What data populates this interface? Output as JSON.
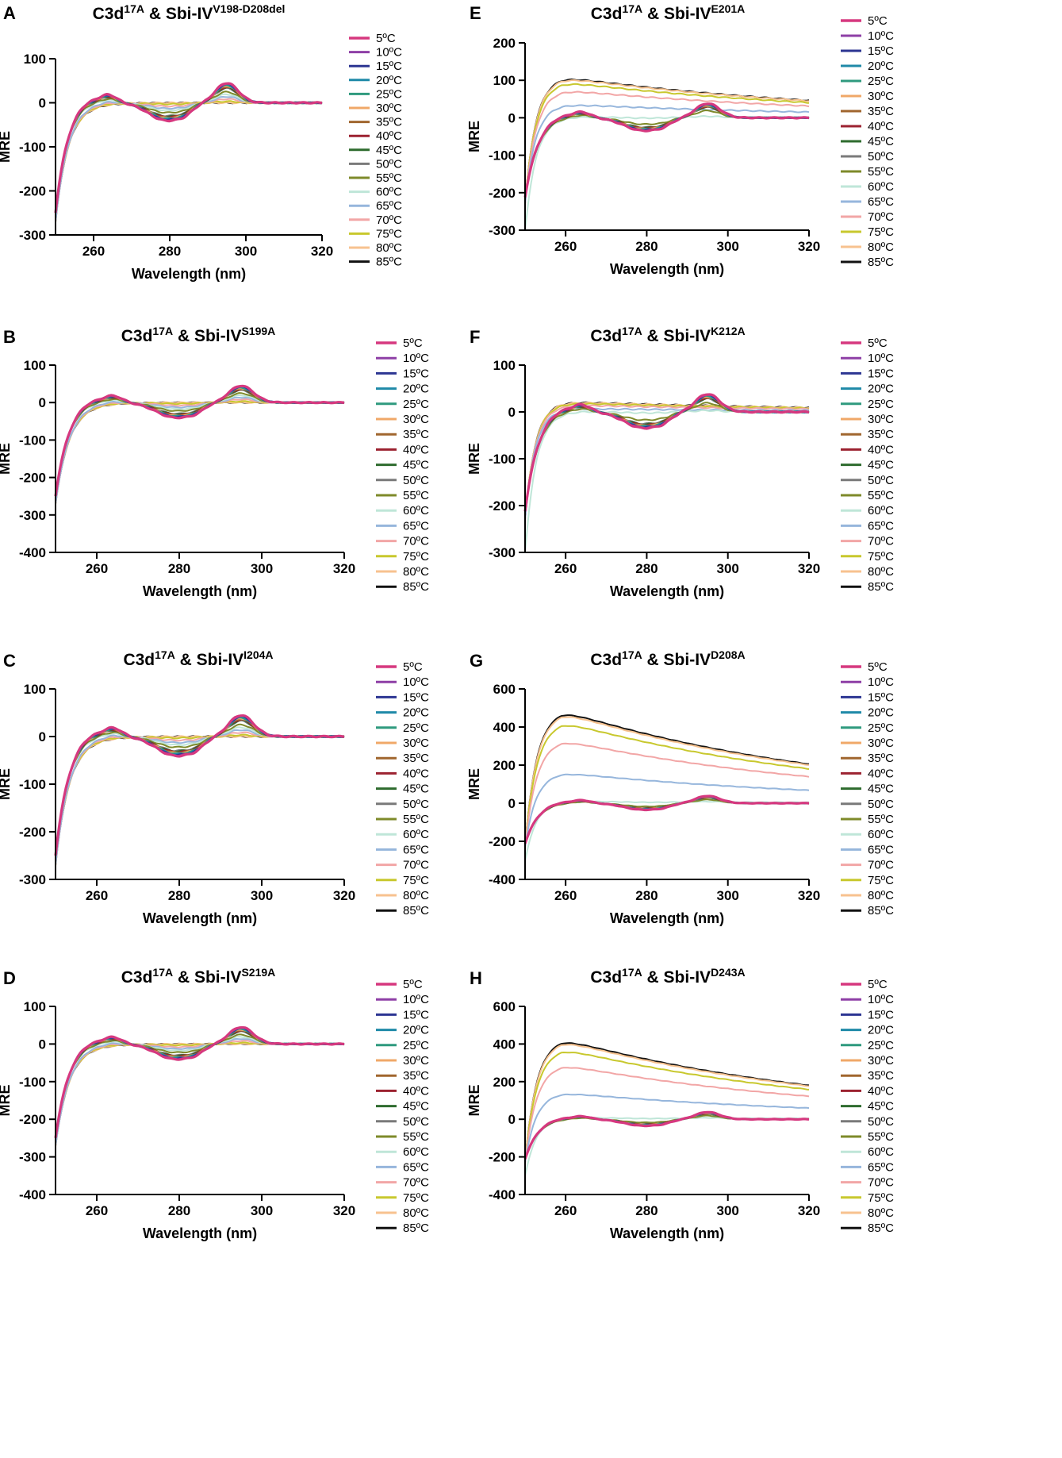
{
  "figure": {
    "legend_temperatures": [
      "5ºC",
      "10ºC",
      "15ºC",
      "20ºC",
      "25ºC",
      "30ºC",
      "35ºC",
      "40ºC",
      "45ºC",
      "50ºC",
      "55ºC",
      "60ºC",
      "65ºC",
      "70ºC",
      "75ºC",
      "80ºC",
      "85ºC"
    ],
    "legend_temperatures_alt": [
      "5ºC",
      "10ºC",
      "15ºC",
      "20ºC",
      "25ºC",
      "30ºC",
      "35ºC",
      "40ºC",
      "45ºC",
      "50ºC",
      "55ºC",
      "60ºC",
      "65ºC",
      "70ºC",
      "75ºC",
      "80ºC",
      "85ºC"
    ],
    "series_colors": [
      "#d6387f",
      "#8e3fa6",
      "#2c3592",
      "#1f8aa8",
      "#2f9a7e",
      "#f0a868",
      "#a0662e",
      "#9c2230",
      "#2e6b2e",
      "#7a7a7a",
      "#7e8a2a",
      "#bfe6d8",
      "#96b6dc",
      "#f2a6a6",
      "#c8c82e",
      "#f7c28f",
      "#111111"
    ]
  },
  "chart_data": [
    {
      "panel": "A",
      "type": "line",
      "title": {
        "main": "C3d",
        "sup1": "17A",
        "mid": " & Sbi-IV",
        "sup2": "V198-D208del"
      },
      "xlabel": "Wavelength (nm)",
      "ylabel": "MRE",
      "xlim": [
        250,
        320
      ],
      "ylim": [
        -300,
        100
      ],
      "xticks": [
        "260",
        "280",
        "300",
        "320"
      ],
      "yticks": [
        "100",
        "0",
        "-100",
        "-200",
        "-300"
      ],
      "hot_mode": "neg",
      "legend": "temps"
    },
    {
      "panel": "B",
      "type": "line",
      "title": {
        "main": "C3d",
        "sup1": "17A",
        "mid": " & Sbi-IV",
        "sup2": "S199A"
      },
      "xlabel": "Wavelength (nm)",
      "ylabel": "MRE",
      "xlim": [
        250,
        320
      ],
      "ylim": [
        -400,
        100
      ],
      "xticks": [
        "260",
        "280",
        "300",
        "320"
      ],
      "yticks": [
        "100",
        "0",
        "-100",
        "-200",
        "-300",
        "-400"
      ],
      "hot_mode": "neg",
      "legend": "temps"
    },
    {
      "panel": "C",
      "type": "line",
      "title": {
        "main": "C3d",
        "sup1": "17A",
        "mid": " & Sbi-IV",
        "sup2": "I204A"
      },
      "xlabel": "Wavelength (nm)",
      "ylabel": "MRE",
      "xlim": [
        250,
        320
      ],
      "ylim": [
        -300,
        100
      ],
      "xticks": [
        "260",
        "280",
        "300",
        "320"
      ],
      "yticks": [
        "100",
        "0",
        "-100",
        "-200",
        "-300"
      ],
      "hot_mode": "neg",
      "legend": "temps"
    },
    {
      "panel": "D",
      "type": "line",
      "title": {
        "main": "C3d",
        "sup1": "17A",
        "mid": " & Sbi-IV",
        "sup2": "S219A"
      },
      "xlabel": "Wavelength (nm)",
      "ylabel": "MRE",
      "xlim": [
        250,
        320
      ],
      "ylim": [
        -400,
        100
      ],
      "xticks": [
        "260",
        "280",
        "300",
        "320"
      ],
      "yticks": [
        "100",
        "0",
        "-100",
        "-200",
        "-300",
        "-400"
      ],
      "hot_mode": "neg",
      "legend": "temps"
    },
    {
      "panel": "E",
      "type": "line",
      "title": {
        "main": "C3d",
        "sup1": "17A",
        "mid": " & Sbi-IV",
        "sup2": "E201A"
      },
      "xlabel": "Wavelength (nm)",
      "ylabel": "MRE",
      "xlim": [
        250,
        320
      ],
      "ylim": [
        -300,
        200
      ],
      "xticks": [
        "260",
        "280",
        "300",
        "320"
      ],
      "yticks": [
        "200",
        "100",
        "0",
        "-100",
        "-200",
        "-300"
      ],
      "hot_mode": "pos",
      "hot_peak": 110,
      "legend": "temps_alt"
    },
    {
      "panel": "F",
      "type": "line",
      "title": {
        "main": "C3d",
        "sup1": "17A",
        "mid": " & Sbi-IV",
        "sup2": "K212A"
      },
      "xlabel": "Wavelength (nm)",
      "ylabel": "MRE",
      "xlim": [
        250,
        320
      ],
      "ylim": [
        -300,
        100
      ],
      "xticks": [
        "260",
        "280",
        "300",
        "320"
      ],
      "yticks": [
        "100",
        "0",
        "-100",
        "-200",
        "-300"
      ],
      "hot_mode": "pos",
      "hot_peak": 22,
      "legend": "temps"
    },
    {
      "panel": "G",
      "type": "line",
      "title": {
        "main": "C3d",
        "sup1": "17A",
        "mid": " & Sbi-IV",
        "sup2": "D208A"
      },
      "xlabel": "Wavelength (nm)",
      "ylabel": "MRE",
      "xlim": [
        250,
        320
      ],
      "ylim": [
        -400,
        600
      ],
      "xticks": [
        "260",
        "280",
        "300",
        "320"
      ],
      "yticks": [
        "600",
        "400",
        "200",
        "0",
        "-200",
        "-400"
      ],
      "hot_mode": "pos",
      "hot_peak": 490,
      "legend": "temps"
    },
    {
      "panel": "H",
      "type": "line",
      "title": {
        "main": "C3d",
        "sup1": "17A",
        "mid": " & Sbi-IV",
        "sup2": "D243A"
      },
      "xlabel": "Wavelength (nm)",
      "ylabel": "MRE",
      "xlim": [
        250,
        320
      ],
      "ylim": [
        -400,
        600
      ],
      "xticks": [
        "260",
        "280",
        "300",
        "320"
      ],
      "yticks": [
        "600",
        "400",
        "200",
        "0",
        "-200",
        "-400"
      ],
      "hot_mode": "pos",
      "hot_peak": 430,
      "legend": "temps"
    }
  ]
}
